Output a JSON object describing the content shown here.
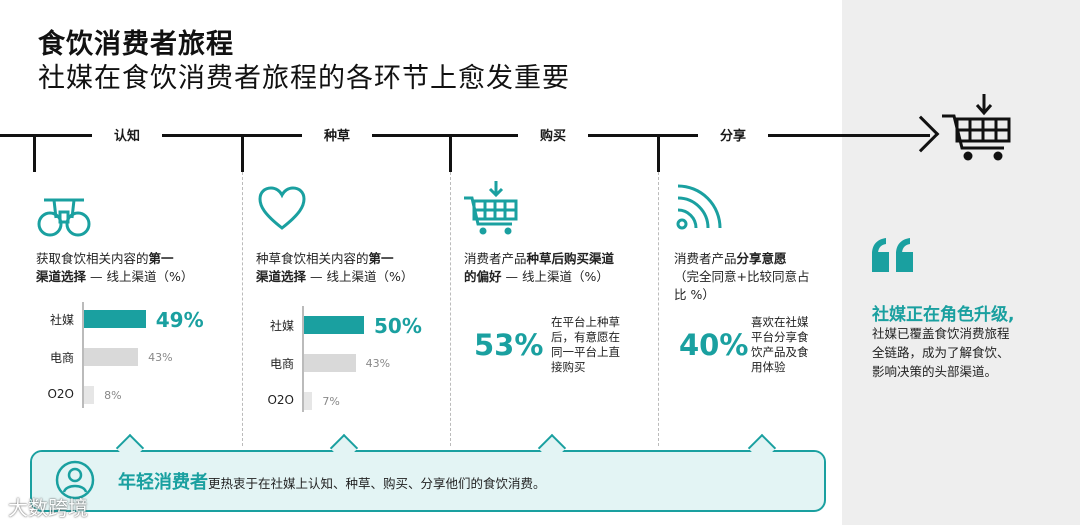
{
  "header": {
    "title": "食饮消费者旅程",
    "subtitle": "社媒在食饮消费者旅程的各环节上愈发重要"
  },
  "timeline": {
    "stages": [
      "认知",
      "种草",
      "购买",
      "分享"
    ]
  },
  "col1": {
    "text_pre": "获取食饮相关内容的",
    "text_bold1": "第一",
    "text_bold2": "渠道选择",
    "text_post": " — 线上渠道（%）",
    "bars": [
      {
        "label": "社媒",
        "value": 49,
        "display": "49%"
      },
      {
        "label": "电商",
        "value": 43,
        "display": "43%"
      },
      {
        "label": "O2O",
        "value": 8,
        "display": "8%"
      }
    ]
  },
  "col2": {
    "text_pre": "种草食饮相关内容的",
    "text_bold1": "第一",
    "text_bold2": "渠道选择",
    "text_post": " — 线上渠道（%）",
    "bars": [
      {
        "label": "社媒",
        "value": 50,
        "display": "50%"
      },
      {
        "label": "电商",
        "value": 43,
        "display": "43%"
      },
      {
        "label": "O2O",
        "value": 7,
        "display": "7%"
      }
    ]
  },
  "col3": {
    "text_pre": "消费者产品",
    "text_bold1": "种草后购买渠道",
    "text_bold2": "的偏好",
    "text_post": " — 线上渠道（%）",
    "pct": "53%",
    "desc_line1": "在平台上种草",
    "desc_line2": "后，有意愿在",
    "desc_line3": "同一平台上直",
    "desc_line4": "接购买"
  },
  "col4": {
    "text_pre": "消费者产品",
    "text_bold1": "分享意愿",
    "text_line2": "（完全同意+比较同意占",
    "text_line3": "比 %）",
    "pct": "40%",
    "desc_line1": "喜欢在社媒",
    "desc_line2": "平台分享食",
    "desc_line3": "饮产品及食",
    "desc_line4": "用体验"
  },
  "callout": {
    "highlight": "年轻消费者",
    "text": "更热衷于在社媒上认知、种草、购买、分享他们的食饮消费。"
  },
  "right": {
    "title": "社媒正在角色升级,",
    "body_line1": "社媒已覆盖食饮消费旅程",
    "body_line2": "全链路，成为了解食饮、",
    "body_line3": "影响决策的头部渠道。"
  },
  "watermark": "大数跨境",
  "colors": {
    "accent": "#1aa0a0",
    "bar_gray": "#d9d9d9",
    "bar_light": "#e6e6e6",
    "panel": "#eeeeee"
  },
  "icons": [
    "binoculars-icon",
    "heart-icon",
    "cart-icon",
    "wifi-share-icon",
    "cart-arrow-icon",
    "user-icon",
    "quote-icon"
  ]
}
